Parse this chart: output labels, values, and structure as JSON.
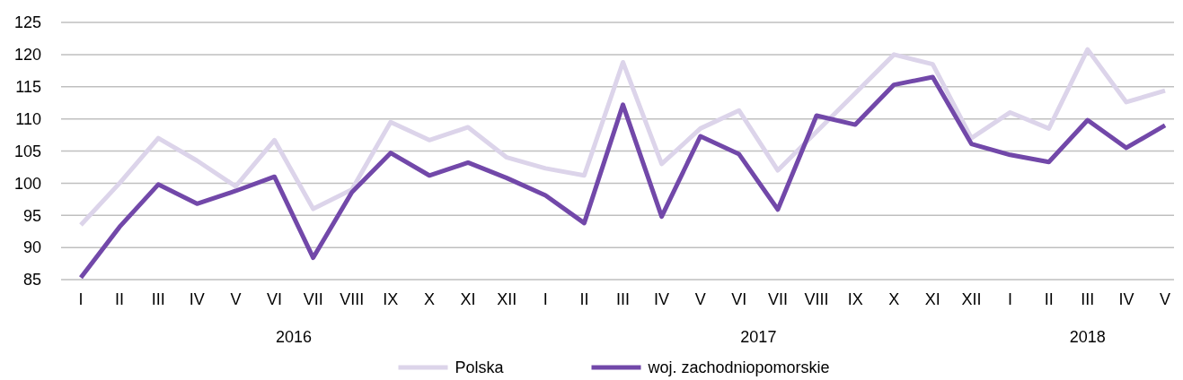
{
  "chart_data": {
    "type": "line",
    "categories": [
      "I",
      "II",
      "III",
      "IV",
      "V",
      "VI",
      "VII",
      "VIII",
      "IX",
      "X",
      "XI",
      "XII",
      "I",
      "II",
      "III",
      "IV",
      "V",
      "VI",
      "VII",
      "VIII",
      "IX",
      "X",
      "XI",
      "XII",
      "I",
      "II",
      "III",
      "IV",
      "V"
    ],
    "series": [
      {
        "name": "Polska",
        "color": "#dcd4ea",
        "values": [
          93.5,
          100,
          107,
          103.5,
          99.5,
          106.7,
          96,
          99,
          109.5,
          106.7,
          108.7,
          104,
          102.3,
          101.2,
          118.8,
          103,
          108.5,
          111.3,
          102,
          108,
          114,
          120,
          118.5,
          107,
          111,
          108.5,
          120.8,
          112.6,
          114.4
        ]
      },
      {
        "name": "woj. zachodniopomorskie",
        "color": "#7248a9",
        "values": [
          85.3,
          93.2,
          99.8,
          96.8,
          98.8,
          101,
          88.4,
          98.6,
          104.7,
          101.2,
          103.2,
          100.8,
          98.1,
          93.8,
          112.2,
          94.8,
          107.3,
          104.5,
          95.9,
          110.5,
          109.1,
          115.3,
          116.5,
          106.1,
          104.4,
          103.3,
          109.8,
          105.5,
          109
        ]
      }
    ],
    "ylim": [
      85,
      125
    ],
    "yticks": [
      85,
      90,
      95,
      100,
      105,
      110,
      115,
      120,
      125
    ],
    "grid": "y",
    "legend": "bottom",
    "line_style": "solid",
    "annotations": [
      "2016",
      "2017",
      "2018"
    ]
  }
}
